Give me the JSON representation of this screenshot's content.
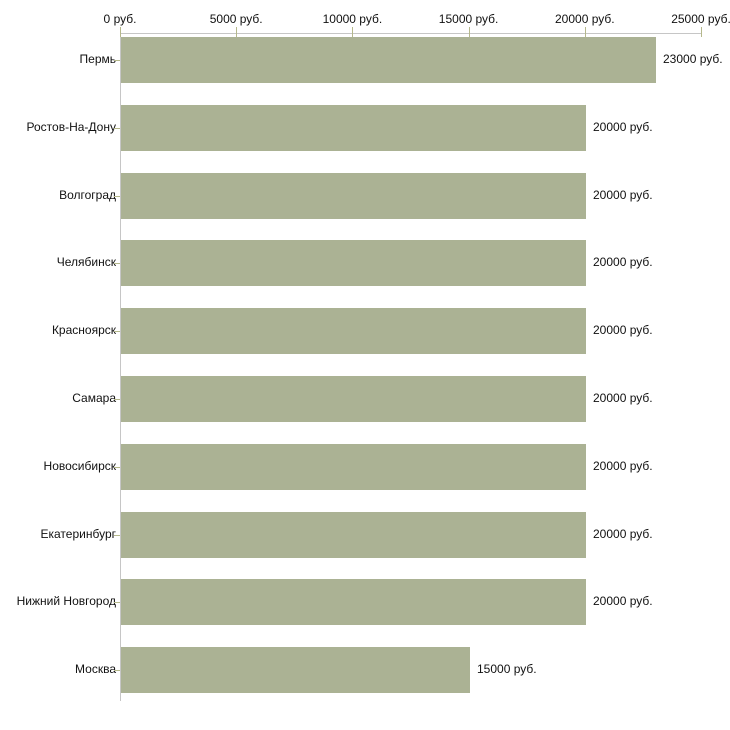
{
  "chart_data": {
    "type": "bar",
    "orientation": "horizontal",
    "title": "",
    "xlabel": "",
    "ylabel": "",
    "unit_suffix": " руб.",
    "categories": [
      "Пермь",
      "Ростов-На-Дону",
      "Волгоград",
      "Челябинск",
      "Красноярск",
      "Самара",
      "Новосибирск",
      "Екатеринбург",
      "Нижний Новгород",
      "Москва"
    ],
    "values": [
      23000,
      20000,
      20000,
      20000,
      20000,
      20000,
      20000,
      20000,
      20000,
      15000
    ],
    "value_labels": [
      "23000 руб.",
      "20000 руб.",
      "20000 руб.",
      "20000 руб.",
      "20000 руб.",
      "20000 руб.",
      "20000 руб.",
      "20000 руб.",
      "20000 руб.",
      "15000 руб."
    ],
    "axis": {
      "position": "top",
      "min": 0,
      "max": 25000,
      "tick_values": [
        0,
        5000,
        10000,
        15000,
        20000,
        25000
      ],
      "tick_labels": [
        "0 руб.",
        "5000 руб.",
        "10000 руб.",
        "15000 руб.",
        "20000 руб.",
        "25000 руб."
      ]
    },
    "legend": {
      "visible": false
    },
    "grid": false,
    "colors": {
      "bar": "#abb294",
      "axis_line": "#c6c6c6",
      "tick": "#b5b88b",
      "text": "#111111",
      "background": "#ffffff"
    }
  }
}
